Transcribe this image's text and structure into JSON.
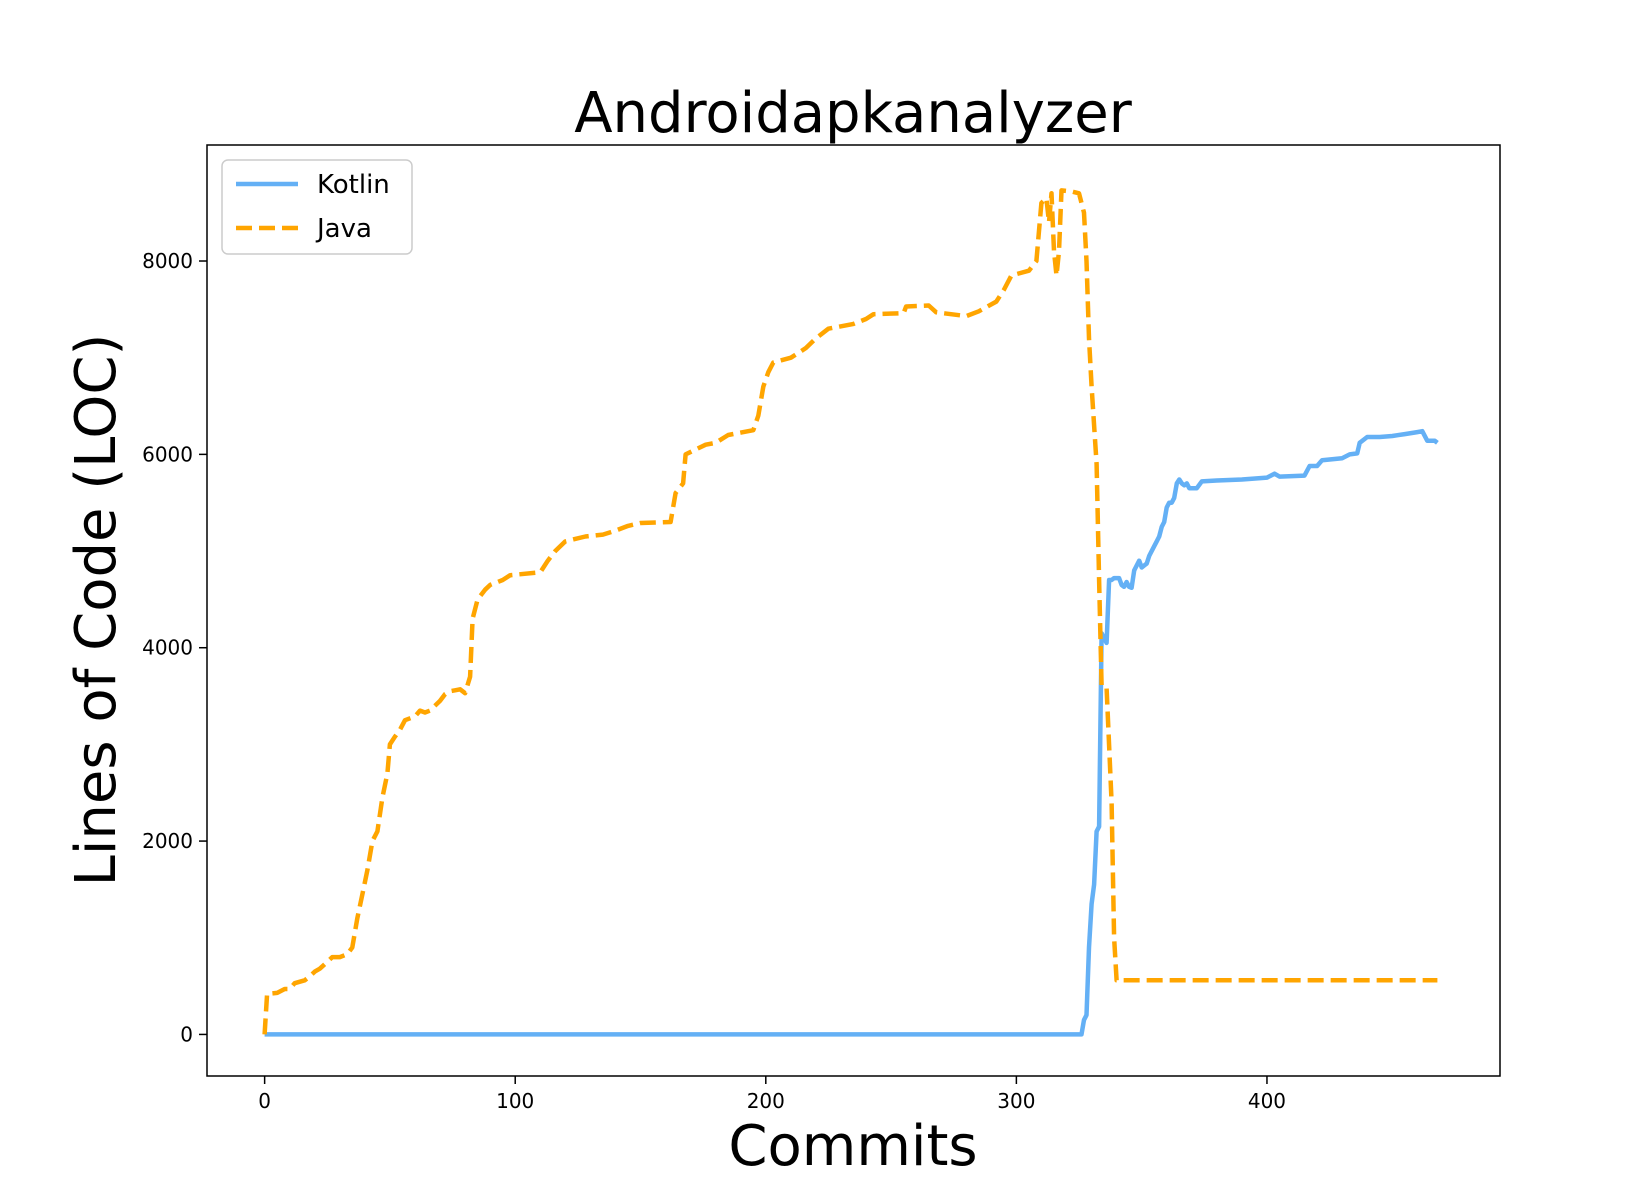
{
  "chart_data": {
    "type": "line",
    "title": "Androidapkanalyzer",
    "xlabel": "Commits",
    "ylabel": "Lines of Code (LOC)",
    "xlim": [
      -23,
      493
    ],
    "ylim": [
      -430,
      9200
    ],
    "xticks": [
      0,
      100,
      200,
      300,
      400
    ],
    "yticks": [
      0,
      2000,
      4000,
      6000,
      8000
    ],
    "grid": false,
    "legend_position": "top-left",
    "series": [
      {
        "name": "Kotlin",
        "color": "#64b0f5",
        "style": "solid",
        "points": [
          [
            0,
            0
          ],
          [
            100,
            0
          ],
          [
            200,
            0
          ],
          [
            300,
            0
          ],
          [
            326,
            0
          ],
          [
            327,
            150
          ],
          [
            328,
            200
          ],
          [
            329,
            900
          ],
          [
            330,
            1350
          ],
          [
            331,
            1550
          ],
          [
            332,
            2100
          ],
          [
            333,
            2150
          ],
          [
            334,
            4150
          ],
          [
            335,
            4100
          ],
          [
            336,
            4050
          ],
          [
            337,
            4700
          ],
          [
            338,
            4700
          ],
          [
            339,
            4720
          ],
          [
            340,
            4720
          ],
          [
            341,
            4720
          ],
          [
            342,
            4650
          ],
          [
            343,
            4630
          ],
          [
            344,
            4680
          ],
          [
            345,
            4630
          ],
          [
            346,
            4620
          ],
          [
            347,
            4800
          ],
          [
            348,
            4850
          ],
          [
            349,
            4900
          ],
          [
            350,
            4830
          ],
          [
            351,
            4850
          ],
          [
            352,
            4870
          ],
          [
            353,
            4950
          ],
          [
            355,
            5050
          ],
          [
            356,
            5100
          ],
          [
            357,
            5150
          ],
          [
            358,
            5250
          ],
          [
            359,
            5300
          ],
          [
            360,
            5450
          ],
          [
            361,
            5500
          ],
          [
            362,
            5500
          ],
          [
            363,
            5550
          ],
          [
            364,
            5700
          ],
          [
            365,
            5740
          ],
          [
            366,
            5700
          ],
          [
            367,
            5680
          ],
          [
            368,
            5700
          ],
          [
            369,
            5650
          ],
          [
            372,
            5650
          ],
          [
            374,
            5720
          ],
          [
            380,
            5730
          ],
          [
            390,
            5740
          ],
          [
            400,
            5760
          ],
          [
            403,
            5800
          ],
          [
            405,
            5770
          ],
          [
            415,
            5780
          ],
          [
            417,
            5880
          ],
          [
            420,
            5880
          ],
          [
            422,
            5940
          ],
          [
            430,
            5960
          ],
          [
            433,
            6000
          ],
          [
            436,
            6010
          ],
          [
            437,
            6120
          ],
          [
            440,
            6180
          ],
          [
            445,
            6180
          ],
          [
            450,
            6190
          ],
          [
            455,
            6210
          ],
          [
            460,
            6230
          ],
          [
            462,
            6240
          ],
          [
            464,
            6140
          ],
          [
            467,
            6140
          ],
          [
            468,
            6120
          ]
        ]
      },
      {
        "name": "Java",
        "color": "#ffa500",
        "style": "dashed",
        "points": [
          [
            0,
            0
          ],
          [
            1,
            420
          ],
          [
            5,
            430
          ],
          [
            8,
            470
          ],
          [
            10,
            470
          ],
          [
            12,
            530
          ],
          [
            16,
            560
          ],
          [
            18,
            600
          ],
          [
            20,
            650
          ],
          [
            22,
            680
          ],
          [
            25,
            750
          ],
          [
            27,
            800
          ],
          [
            30,
            800
          ],
          [
            33,
            830
          ],
          [
            35,
            900
          ],
          [
            37,
            1200
          ],
          [
            39,
            1450
          ],
          [
            41,
            1700
          ],
          [
            43,
            2000
          ],
          [
            45,
            2100
          ],
          [
            47,
            2450
          ],
          [
            49,
            2700
          ],
          [
            50,
            3000
          ],
          [
            52,
            3080
          ],
          [
            54,
            3150
          ],
          [
            56,
            3250
          ],
          [
            58,
            3270
          ],
          [
            60,
            3290
          ],
          [
            62,
            3350
          ],
          [
            64,
            3330
          ],
          [
            66,
            3350
          ],
          [
            68,
            3400
          ],
          [
            70,
            3450
          ],
          [
            72,
            3520
          ],
          [
            74,
            3550
          ],
          [
            76,
            3560
          ],
          [
            78,
            3570
          ],
          [
            80,
            3530
          ],
          [
            82,
            3700
          ],
          [
            83,
            4300
          ],
          [
            85,
            4500
          ],
          [
            88,
            4600
          ],
          [
            90,
            4650
          ],
          [
            95,
            4700
          ],
          [
            98,
            4750
          ],
          [
            110,
            4780
          ],
          [
            113,
            4900
          ],
          [
            116,
            5000
          ],
          [
            120,
            5100
          ],
          [
            128,
            5150
          ],
          [
            135,
            5170
          ],
          [
            140,
            5210
          ],
          [
            145,
            5260
          ],
          [
            150,
            5290
          ],
          [
            162,
            5300
          ],
          [
            164,
            5600
          ],
          [
            167,
            5700
          ],
          [
            168,
            6000
          ],
          [
            172,
            6050
          ],
          [
            176,
            6100
          ],
          [
            180,
            6120
          ],
          [
            185,
            6200
          ],
          [
            195,
            6250
          ],
          [
            197,
            6400
          ],
          [
            199,
            6700
          ],
          [
            201,
            6850
          ],
          [
            203,
            6950
          ],
          [
            210,
            7000
          ],
          [
            213,
            7050
          ],
          [
            216,
            7100
          ],
          [
            220,
            7200
          ],
          [
            225,
            7300
          ],
          [
            235,
            7350
          ],
          [
            240,
            7400
          ],
          [
            243,
            7450
          ],
          [
            255,
            7460
          ],
          [
            256,
            7530
          ],
          [
            265,
            7540
          ],
          [
            268,
            7470
          ],
          [
            280,
            7430
          ],
          [
            285,
            7480
          ],
          [
            292,
            7580
          ],
          [
            295,
            7700
          ],
          [
            298,
            7850
          ],
          [
            305,
            7900
          ],
          [
            308,
            8000
          ],
          [
            310,
            8600
          ],
          [
            312,
            8650
          ],
          [
            313,
            8400
          ],
          [
            314,
            8700
          ],
          [
            315,
            8100
          ],
          [
            316,
            7850
          ],
          [
            317,
            8100
          ],
          [
            318,
            8730
          ],
          [
            322,
            8720
          ],
          [
            325,
            8700
          ],
          [
            327,
            8500
          ],
          [
            328,
            8000
          ],
          [
            329,
            7200
          ],
          [
            330,
            6700
          ],
          [
            331,
            6300
          ],
          [
            332,
            5900
          ],
          [
            333,
            4700
          ],
          [
            334,
            3600
          ],
          [
            336,
            3580
          ],
          [
            338,
            2400
          ],
          [
            339,
            1000
          ],
          [
            340,
            560
          ],
          [
            350,
            560
          ],
          [
            400,
            560
          ],
          [
            450,
            560
          ],
          [
            468,
            560
          ]
        ]
      }
    ]
  }
}
